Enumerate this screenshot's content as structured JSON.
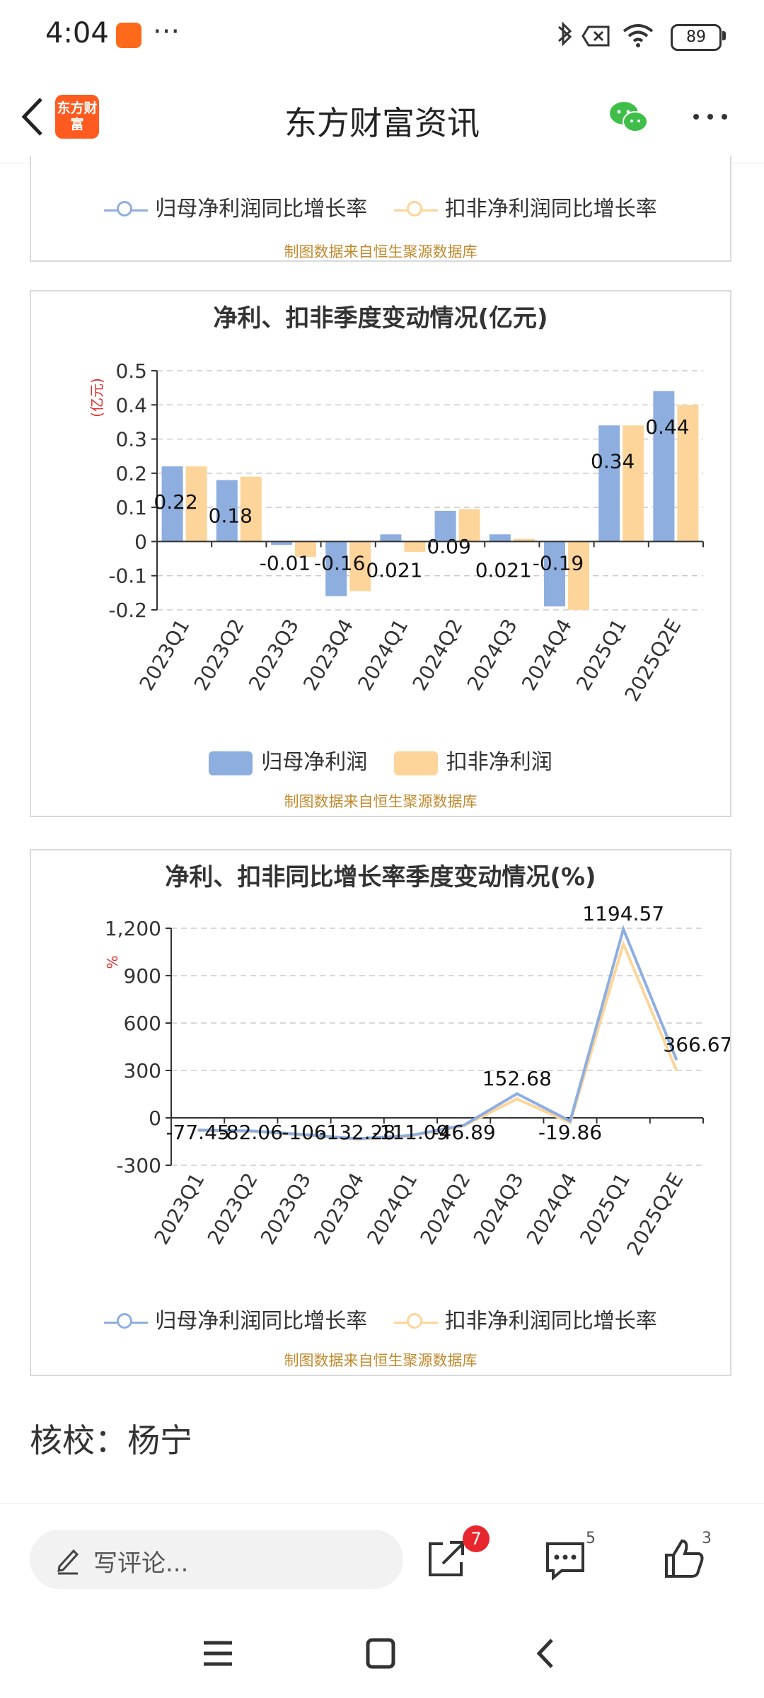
{
  "status_bar": {
    "time": "4:04",
    "more": "···",
    "battery": "89"
  },
  "header": {
    "title": "东方财富资讯",
    "logo_text": "东方财富"
  },
  "card1": {
    "legend": [
      "归母净利润同比增长率",
      "扣非净利润同比增长率"
    ],
    "source": "制图数据来自恒生聚源数据库"
  },
  "card2": {
    "title": "净利、扣非季度变动情况(亿元)",
    "source": "制图数据来自恒生聚源数据库",
    "legend": [
      "归母净利润",
      "扣非净利润"
    ]
  },
  "card3": {
    "title": "净利、扣非同比增长率季度变动情况(%)",
    "source": "制图数据来自恒生聚源数据库",
    "legend": [
      "归母净利润同比增长率",
      "扣非净利润同比增长率"
    ]
  },
  "colors": {
    "series_a": "#8eaee0",
    "series_b": "#fdd59a",
    "source_text": "#c08a2e",
    "badge": "#e8262e"
  },
  "chart_data": [
    {
      "type": "bar",
      "title": "净利、扣非季度变动情况(亿元)",
      "ylabel": "(亿元)",
      "ylim": [
        -0.2,
        0.5
      ],
      "yticks": [
        "0.5",
        "0.4",
        "0.3",
        "0.2",
        "0.1",
        "0",
        "-0.1",
        "-0.2"
      ],
      "categories": [
        "2023Q1",
        "2023Q2",
        "2023Q3",
        "2023Q4",
        "2024Q1",
        "2024Q2",
        "2024Q3",
        "2024Q4",
        "2025Q1",
        "2025Q2E"
      ],
      "series": [
        {
          "name": "归母净利润",
          "values": [
            0.22,
            0.18,
            -0.01,
            -0.16,
            0.021,
            0.09,
            0.021,
            -0.19,
            0.34,
            0.44
          ],
          "labels": [
            "0.22",
            "0.18",
            "-0.01",
            "-0.16",
            "0.021",
            "0.09",
            "0.021",
            "-0.19",
            "0.34",
            "0.44"
          ]
        },
        {
          "name": "扣非净利润",
          "values": [
            0.22,
            0.19,
            -0.045,
            -0.145,
            -0.03,
            0.095,
            0.008,
            -0.2,
            0.34,
            0.4
          ]
        }
      ],
      "legend_position": "bottom",
      "grid": true
    },
    {
      "type": "line",
      "title": "净利、扣非同比增长率季度变动情况(%)",
      "ylabel": "%",
      "ylim": [
        -300,
        1200
      ],
      "yticks": [
        "1,200",
        "900",
        "600",
        "300",
        "0",
        "-300"
      ],
      "categories": [
        "2023Q1",
        "2023Q2",
        "2023Q3",
        "2023Q4",
        "2024Q1",
        "2024Q2",
        "2024Q3",
        "2024Q4",
        "2025Q1",
        "2025Q2E"
      ],
      "series": [
        {
          "name": "归母净利润同比增长率",
          "values": [
            -77.45,
            -82.06,
            -106,
            -132.28,
            -111.09,
            -46.89,
            152.68,
            -19.86,
            1194.57,
            366.67
          ],
          "labels": [
            "-77.45",
            "-82.06",
            "-106",
            "-132.28",
            "-111.09",
            "-46.89",
            "152.68",
            "-19.86",
            "1194.57",
            "366.67"
          ]
        },
        {
          "name": "扣非净利润同比增长率",
          "values": [
            -80,
            -85,
            -110,
            -135,
            -115,
            -50,
            120,
            -30,
            1100,
            300
          ]
        }
      ],
      "legend_position": "bottom",
      "grid": true
    }
  ],
  "footer": {
    "reviewer": "核校：杨宁",
    "comment_placeholder": "写评论...",
    "share_badge": "7",
    "comments_count": "5",
    "likes_count": "3"
  }
}
